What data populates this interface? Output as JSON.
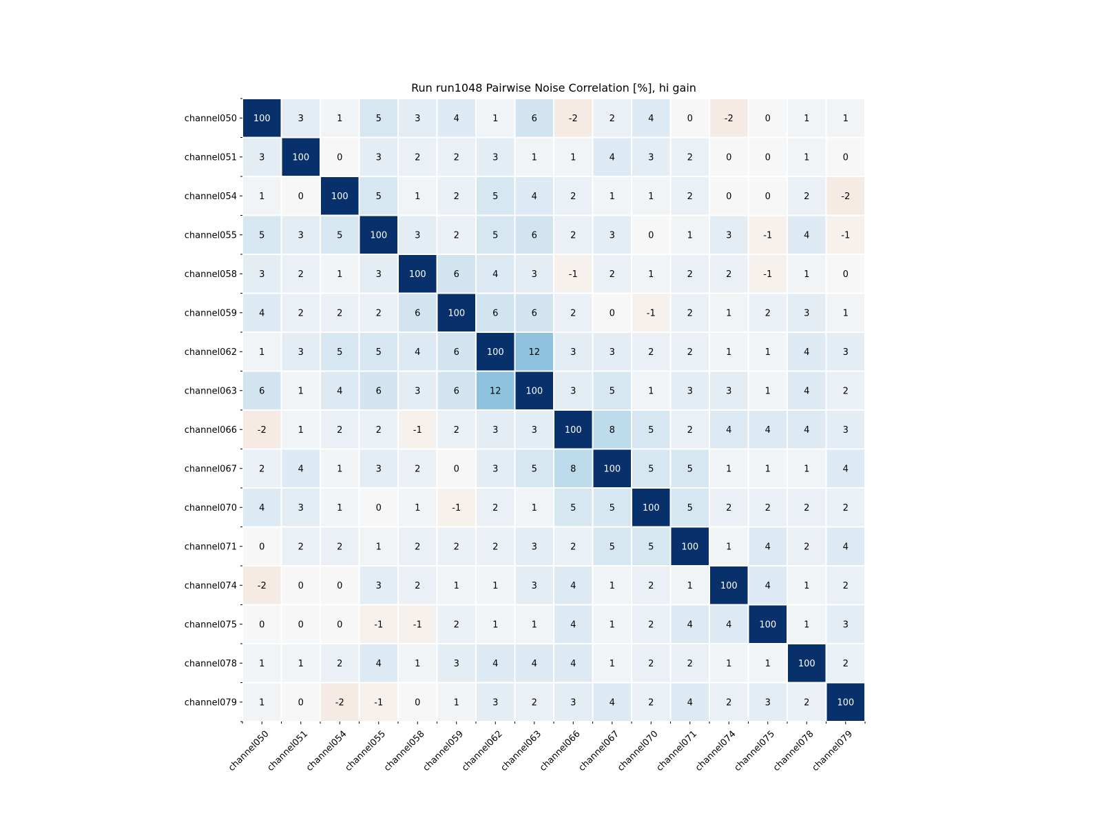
{
  "chart_data": {
    "type": "heatmap",
    "title": "Run run1048 Pairwise Noise Correlation [%], hi gain",
    "xlabel": "",
    "ylabel": "",
    "x_categories": [
      "channel050",
      "channel051",
      "channel054",
      "channel055",
      "channel058",
      "channel059",
      "channel062",
      "channel063",
      "channel066",
      "channel067",
      "channel070",
      "channel071",
      "channel074",
      "channel075",
      "channel078",
      "channel079"
    ],
    "y_categories": [
      "channel050",
      "channel051",
      "channel054",
      "channel055",
      "channel058",
      "channel059",
      "channel062",
      "channel063",
      "channel066",
      "channel067",
      "channel070",
      "channel071",
      "channel074",
      "channel075",
      "channel078",
      "channel079"
    ],
    "values": [
      [
        100,
        3,
        1,
        5,
        3,
        4,
        1,
        6,
        -2,
        2,
        4,
        0,
        -2,
        0,
        1,
        1
      ],
      [
        3,
        100,
        0,
        3,
        2,
        2,
        3,
        1,
        1,
        4,
        3,
        2,
        0,
        0,
        1,
        0
      ],
      [
        1,
        0,
        100,
        5,
        1,
        2,
        5,
        4,
        2,
        1,
        1,
        2,
        0,
        0,
        2,
        -2
      ],
      [
        5,
        3,
        5,
        100,
        3,
        2,
        5,
        6,
        2,
        3,
        0,
        1,
        3,
        -1,
        4,
        -1
      ],
      [
        3,
        2,
        1,
        3,
        100,
        6,
        4,
        3,
        -1,
        2,
        1,
        2,
        2,
        -1,
        1,
        0
      ],
      [
        4,
        2,
        2,
        2,
        6,
        100,
        6,
        6,
        2,
        0,
        -1,
        2,
        1,
        2,
        3,
        1
      ],
      [
        1,
        3,
        5,
        5,
        4,
        6,
        100,
        12,
        3,
        3,
        2,
        2,
        1,
        1,
        4,
        3
      ],
      [
        6,
        1,
        4,
        6,
        3,
        6,
        12,
        100,
        3,
        5,
        1,
        3,
        3,
        1,
        4,
        2
      ],
      [
        -2,
        1,
        2,
        2,
        -1,
        2,
        3,
        3,
        100,
        8,
        5,
        2,
        4,
        4,
        4,
        3
      ],
      [
        2,
        4,
        1,
        3,
        2,
        0,
        3,
        5,
        8,
        100,
        5,
        5,
        1,
        1,
        1,
        4
      ],
      [
        4,
        3,
        1,
        0,
        1,
        -1,
        2,
        1,
        5,
        5,
        100,
        5,
        2,
        2,
        2,
        2
      ],
      [
        0,
        2,
        2,
        1,
        2,
        2,
        2,
        3,
        2,
        5,
        5,
        100,
        1,
        4,
        2,
        4
      ],
      [
        -2,
        0,
        0,
        3,
        2,
        1,
        1,
        3,
        4,
        1,
        2,
        1,
        100,
        4,
        1,
        2
      ],
      [
        0,
        0,
        0,
        -1,
        -1,
        2,
        1,
        1,
        4,
        1,
        2,
        4,
        4,
        100,
        1,
        3
      ],
      [
        1,
        1,
        2,
        4,
        1,
        3,
        4,
        4,
        4,
        1,
        2,
        2,
        1,
        1,
        100,
        2
      ],
      [
        1,
        0,
        -2,
        -1,
        0,
        1,
        3,
        2,
        3,
        4,
        2,
        4,
        2,
        3,
        2,
        100
      ]
    ],
    "colormap": "diverging red-white-blue, centered at 0",
    "colors": {
      "max": "#08306b",
      "high": "#2f6fae",
      "mid": "#8fc2de",
      "neutral": "#f7f7f7",
      "negative": "#f4dccf",
      "text_dark": "#000000",
      "text_light": "#ffffff"
    },
    "grid": false,
    "legend": "none"
  }
}
